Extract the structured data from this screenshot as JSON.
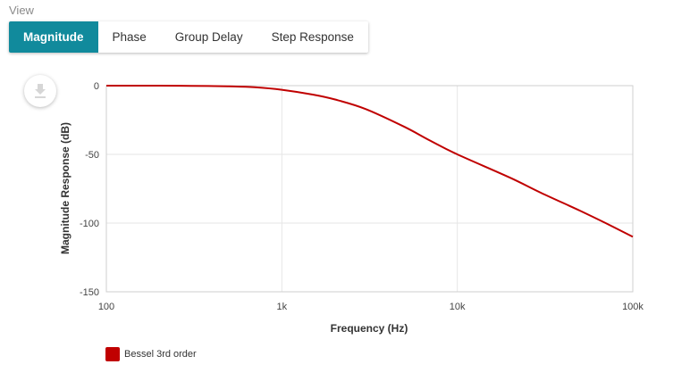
{
  "view": {
    "label": "View",
    "tabs": [
      {
        "label": "Magnitude",
        "active": true
      },
      {
        "label": "Phase",
        "active": false
      },
      {
        "label": "Group Delay",
        "active": false
      },
      {
        "label": "Step Response",
        "active": false
      }
    ]
  },
  "download": {
    "icon": "download-icon"
  },
  "chart_data": {
    "type": "line",
    "xlabel": "Frequency (Hz)",
    "ylabel": "Magnitude Response (dB)",
    "xscale": "log",
    "xlim": [
      100,
      100000
    ],
    "ylim": [
      -150,
      0
    ],
    "xticks": [
      100,
      1000,
      10000,
      100000
    ],
    "xtick_labels": [
      "100",
      "1k",
      "10k",
      "100k"
    ],
    "yticks": [
      0,
      -50,
      -100,
      -150
    ],
    "ytick_labels": [
      "0",
      "-50",
      "-100",
      "-150"
    ],
    "grid": true,
    "legend_position": "bottom-left",
    "series": [
      {
        "name": "Bessel 3rd order",
        "color": "#c00000",
        "x": [
          100,
          200,
          300,
          500,
          700,
          1000,
          1500,
          2000,
          3000,
          5000,
          7000,
          10000,
          20000,
          30000,
          50000,
          70000,
          100000
        ],
        "y": [
          0,
          0,
          -0.1,
          -0.5,
          -1.2,
          -3,
          -6.5,
          -10,
          -17,
          -30,
          -40,
          -50,
          -67,
          -78,
          -91,
          -100,
          -110
        ]
      }
    ]
  }
}
